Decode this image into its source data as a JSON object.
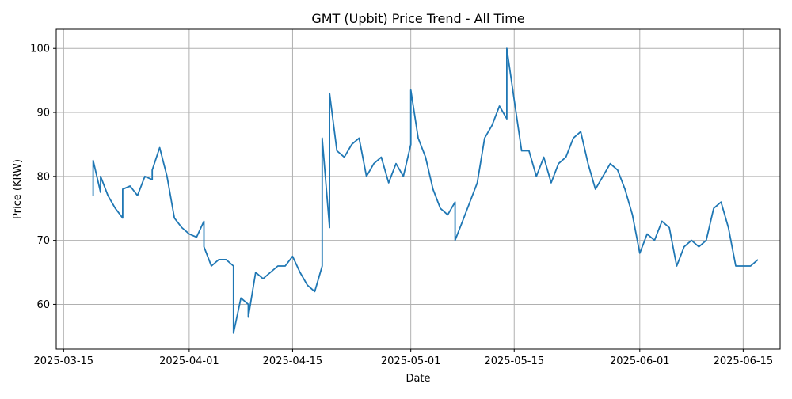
{
  "chart_data": {
    "type": "line",
    "title": "GMT (Upbit) Price Trend - All Time",
    "xlabel": "Date",
    "ylabel": "Price (KRW)",
    "grid": true,
    "line_color": "#1f77b4",
    "x_ticks": [
      "2025-03-15",
      "2025-04-01",
      "2025-04-15",
      "2025-05-01",
      "2025-05-15",
      "2025-06-01",
      "2025-06-15"
    ],
    "y_ticks": [
      60,
      70,
      80,
      90,
      100
    ],
    "xlim": [
      "2025-03-14",
      "2025-06-20"
    ],
    "ylim": [
      53,
      103
    ],
    "series": [
      {
        "x": [
          "2025-03-19",
          "2025-03-19",
          "2025-03-20",
          "2025-03-20",
          "2025-03-21",
          "2025-03-22",
          "2025-03-23",
          "2025-03-23",
          "2025-03-24",
          "2025-03-25",
          "2025-03-26",
          "2025-03-27",
          "2025-03-27",
          "2025-03-28",
          "2025-03-29",
          "2025-03-30",
          "2025-03-31",
          "2025-04-01",
          "2025-04-02",
          "2025-04-03",
          "2025-04-03",
          "2025-04-04",
          "2025-04-05",
          "2025-04-06",
          "2025-04-07",
          "2025-04-07",
          "2025-04-08",
          "2025-04-09",
          "2025-04-09",
          "2025-04-10",
          "2025-04-11",
          "2025-04-12",
          "2025-04-13",
          "2025-04-14",
          "2025-04-15",
          "2025-04-16",
          "2025-04-17",
          "2025-04-18",
          "2025-04-19",
          "2025-04-19",
          "2025-04-20",
          "2025-04-20",
          "2025-04-21",
          "2025-04-22",
          "2025-04-23",
          "2025-04-24",
          "2025-04-25",
          "2025-04-26",
          "2025-04-27",
          "2025-04-28",
          "2025-04-29",
          "2025-04-30",
          "2025-05-01",
          "2025-05-01",
          "2025-05-02",
          "2025-05-03",
          "2025-05-04",
          "2025-05-05",
          "2025-05-06",
          "2025-05-07",
          "2025-05-07",
          "2025-05-08",
          "2025-05-09",
          "2025-05-10",
          "2025-05-11",
          "2025-05-12",
          "2025-05-13",
          "2025-05-14",
          "2025-05-14",
          "2025-05-15",
          "2025-05-16",
          "2025-05-17",
          "2025-05-18",
          "2025-05-19",
          "2025-05-20",
          "2025-05-21",
          "2025-05-22",
          "2025-05-23",
          "2025-05-24",
          "2025-05-25",
          "2025-05-26",
          "2025-05-27",
          "2025-05-28",
          "2025-05-29",
          "2025-05-30",
          "2025-05-31",
          "2025-06-01",
          "2025-06-02",
          "2025-06-03",
          "2025-06-04",
          "2025-06-05",
          "2025-06-06",
          "2025-06-07",
          "2025-06-08",
          "2025-06-09",
          "2025-06-10",
          "2025-06-11",
          "2025-06-12",
          "2025-06-13",
          "2025-06-14",
          "2025-06-15",
          "2025-06-16",
          "2025-06-17"
        ],
        "values": [
          77.0,
          82.5,
          77.5,
          80.0,
          77.0,
          75.0,
          73.5,
          78.0,
          78.5,
          77.0,
          80.0,
          79.5,
          81.0,
          84.5,
          80.0,
          73.5,
          72.0,
          71.0,
          70.5,
          73.0,
          69.0,
          66.0,
          67.0,
          67.0,
          66.0,
          55.5,
          61.0,
          60.0,
          58.0,
          65.0,
          64.0,
          65.0,
          66.0,
          66.0,
          67.5,
          65.0,
          63.0,
          62.0,
          66.0,
          86.0,
          72.0,
          93.0,
          84.0,
          83.0,
          85.0,
          86.0,
          80.0,
          82.0,
          83.0,
          79.0,
          82.0,
          80.0,
          85.0,
          93.5,
          86.0,
          83.0,
          78.0,
          75.0,
          74.0,
          76.0,
          70.0,
          73.0,
          76.0,
          79.0,
          86.0,
          88.0,
          91.0,
          89.0,
          100.0,
          92.0,
          84.0,
          84.0,
          80.0,
          83.0,
          79.0,
          82.0,
          83.0,
          86.0,
          87.0,
          82.0,
          78.0,
          80.0,
          82.0,
          81.0,
          78.0,
          74.0,
          68.0,
          71.0,
          70.0,
          73.0,
          72.0,
          66.0,
          69.0,
          70.0,
          69.0,
          70.0,
          75.0,
          76.0,
          72.0,
          66.0,
          66.0,
          66.0,
          67.0
        ]
      }
    ]
  }
}
